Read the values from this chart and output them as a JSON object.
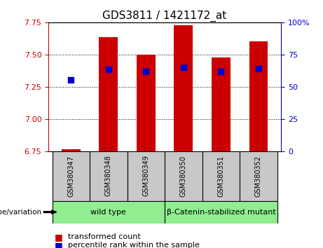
{
  "title": "GDS3811 / 1421172_at",
  "categories": [
    "GSM380347",
    "GSM380348",
    "GSM380349",
    "GSM380350",
    "GSM380351",
    "GSM380352"
  ],
  "red_bar_values": [
    6.765,
    7.635,
    7.5,
    7.73,
    7.48,
    7.605
  ],
  "blue_dot_values": [
    7.305,
    7.385,
    7.37,
    7.4,
    7.37,
    7.39
  ],
  "y_min": 6.75,
  "y_max": 7.75,
  "y_ticks_left": [
    6.75,
    7.0,
    7.25,
    7.5,
    7.75
  ],
  "y_ticks_right": [
    0,
    25,
    50,
    75,
    100
  ],
  "bar_color": "#cc0000",
  "dot_color": "#0000cc",
  "groups": [
    {
      "label": "wild type",
      "indices": [
        0,
        1,
        2
      ],
      "color": "#90ee90"
    },
    {
      "label": "β-Catenin-stabilized mutant",
      "indices": [
        3,
        4,
        5
      ],
      "color": "#90ee90"
    }
  ],
  "genotype_label": "genotype/variation",
  "legend_red": "transformed count",
  "legend_blue": "percentile rank within the sample",
  "bar_width": 0.5,
  "tick_box_color": "#c8c8c8",
  "left_axis_color": "#cc0000",
  "right_axis_color": "#0000cc",
  "title_fontsize": 11,
  "tick_fontsize": 8,
  "legend_fontsize": 8,
  "group_fontsize": 8
}
